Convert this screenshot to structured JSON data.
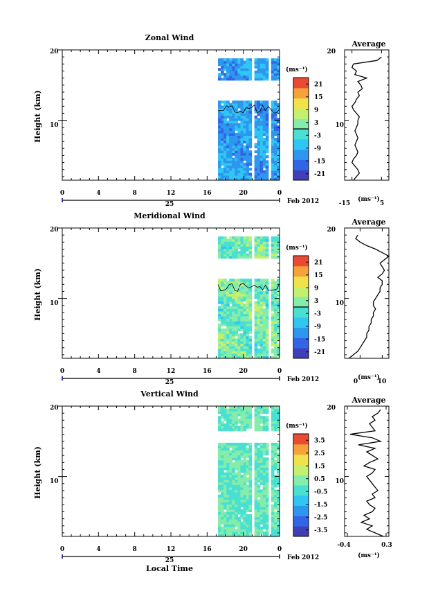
{
  "colors": {
    "scale": [
      "#3f3fb8",
      "#3264e6",
      "#2f96f0",
      "#2fc6f2",
      "#49e0d2",
      "#86ecaa",
      "#c4f06e",
      "#f0e24a",
      "#f5a23a",
      "#ea4a32"
    ]
  },
  "chart_data": [
    {
      "type": "heatmap",
      "title": "Zonal Wind",
      "ylabel": "Height (km)",
      "xlabel": "",
      "date_label": "25",
      "date_suffix": "Feb 2012",
      "x_ticks": [
        "0",
        "4",
        "8",
        "12",
        "16",
        "20",
        "0"
      ],
      "y_ticks": [
        "20",
        "10"
      ],
      "xlim": [
        0,
        24
      ],
      "ylim": [
        1.5,
        20
      ],
      "data_x_range": [
        17.2,
        24
      ],
      "data_heights": [
        [
          1.5,
          12.8
        ],
        [
          15.7,
          18.8
        ]
      ],
      "colorbar_title": "(ms⁻¹)",
      "colorbar_ticks": [
        "21",
        "15",
        "9",
        "3",
        "-3",
        "-9",
        "-15",
        "-21"
      ],
      "colorbar_range": [
        -24,
        24
      ],
      "zero_line": 0,
      "typical_value": -11,
      "variation": 4,
      "has_contour": true,
      "profile": {
        "title": "Average",
        "xlabel": "(ms⁻¹)",
        "x_ticks": [
          "-15",
          "5"
        ],
        "xlim": [
          -20,
          10
        ],
        "heights": [
          1.5,
          2,
          2.5,
          3,
          3.5,
          4,
          4.5,
          5,
          5.5,
          6,
          6.5,
          7,
          7.5,
          8,
          8.5,
          9,
          9.5,
          10,
          10.5,
          11,
          11.5,
          12,
          12.5,
          13,
          13.5,
          14,
          14.5,
          15,
          15.5,
          16,
          16.5,
          17,
          17.5,
          18,
          18.5,
          19
        ],
        "values": [
          -14,
          -12,
          -10,
          -11,
          -13,
          -15,
          -14,
          -12,
          -11,
          -12,
          -13,
          -12,
          -11,
          -12,
          -13,
          -12,
          -11,
          -11,
          -10,
          -12,
          -14,
          -15,
          -13,
          -12,
          -10,
          -11,
          -8,
          -9,
          -11,
          -5,
          -13,
          -12,
          -15,
          -14,
          2,
          5
        ]
      }
    },
    {
      "type": "heatmap",
      "title": "Meridional Wind",
      "ylabel": "Height (km)",
      "xlabel": "",
      "date_label": "25",
      "date_suffix": "Feb 2012",
      "x_ticks": [
        "0",
        "4",
        "8",
        "12",
        "16",
        "20",
        "0"
      ],
      "y_ticks": [
        "20",
        "10"
      ],
      "xlim": [
        0,
        24
      ],
      "ylim": [
        1.5,
        20
      ],
      "data_x_range": [
        17.2,
        24
      ],
      "data_heights": [
        [
          1.5,
          12.8
        ],
        [
          15.7,
          18.8
        ]
      ],
      "colorbar_title": "(ms⁻¹)",
      "colorbar_ticks": [
        "21",
        "15",
        "9",
        "3",
        "-3",
        "-9",
        "-15",
        "-21"
      ],
      "colorbar_range": [
        -24,
        24
      ],
      "zero_line": 0,
      "typical_value": 1,
      "variation": 5,
      "has_contour": true,
      "profile": {
        "title": "Average",
        "xlabel": "(ms⁻¹)",
        "x_ticks": [
          "0",
          "10"
        ],
        "xlim": [
          -7,
          13
        ],
        "heights": [
          1.5,
          2,
          2.5,
          3,
          3.5,
          4,
          4.5,
          5,
          5.5,
          6,
          6.5,
          7,
          7.5,
          8,
          8.5,
          9,
          9.5,
          10,
          10.5,
          11,
          11.5,
          12,
          12.5,
          13,
          13.5,
          14,
          14.5,
          15,
          15.5,
          16,
          16.5,
          17,
          17.5,
          18,
          18.5,
          19
        ],
        "values": [
          -5,
          -3,
          -1,
          0,
          1,
          2,
          3,
          3,
          4,
          4,
          5,
          5,
          6,
          6,
          7,
          6,
          6,
          7,
          8,
          9,
          9,
          10,
          10,
          8,
          10,
          11,
          10,
          9,
          11,
          13,
          10,
          7,
          3,
          0,
          -2,
          -1
        ]
      }
    },
    {
      "type": "heatmap",
      "title": "Vertical Wind",
      "ylabel": "Height (km)",
      "xlabel": "Local Time",
      "date_label": "25",
      "date_suffix": "Feb 2012",
      "x_ticks": [
        "0",
        "4",
        "8",
        "12",
        "16",
        "20",
        "0"
      ],
      "y_ticks": [
        "20",
        "10"
      ],
      "xlim": [
        0,
        24
      ],
      "ylim": [
        1.5,
        20
      ],
      "data_x_range": [
        17.2,
        24
      ],
      "data_heights": [
        [
          1.5,
          14.8
        ],
        [
          16.5,
          20
        ]
      ],
      "colorbar_title": "(ms⁻¹)",
      "colorbar_ticks": [
        "3.5",
        "2.5",
        "1.5",
        "0.5",
        "-0.5",
        "-1.5",
        "-2.5",
        "-3.5"
      ],
      "colorbar_range": [
        -4,
        4
      ],
      "zero_line": null,
      "typical_value": 0,
      "variation": 0.5,
      "has_contour": false,
      "profile": {
        "title": "Average",
        "xlabel": "(ms⁻¹)",
        "x_ticks": [
          "-0.4",
          "0.3"
        ],
        "xlim": [
          -0.45,
          0.35
        ],
        "heights": [
          1.5,
          2,
          2.5,
          3,
          3.5,
          4,
          4.5,
          5,
          5.5,
          6,
          6.5,
          7,
          7.5,
          8,
          8.5,
          9,
          9.5,
          10,
          10.5,
          11,
          11.5,
          12,
          12.5,
          13,
          13.5,
          14,
          14.5,
          15,
          15.5,
          16,
          16.5,
          17,
          17.5,
          18,
          18.5,
          19,
          19.5
        ],
        "values": [
          0.25,
          0.1,
          -0.05,
          0.05,
          -0.15,
          0.0,
          -0.1,
          0.05,
          0.1,
          0.0,
          -0.05,
          0.1,
          0.05,
          0.15,
          0.1,
          0.05,
          0.0,
          -0.05,
          0.05,
          0.1,
          -0.1,
          0.0,
          0.15,
          0.05,
          -0.05,
          0.1,
          -0.2,
          0.2,
          0.05,
          -0.35,
          0.1,
          0.05,
          0.0,
          0.1,
          0.05,
          0.15,
          0.2
        ]
      }
    }
  ]
}
